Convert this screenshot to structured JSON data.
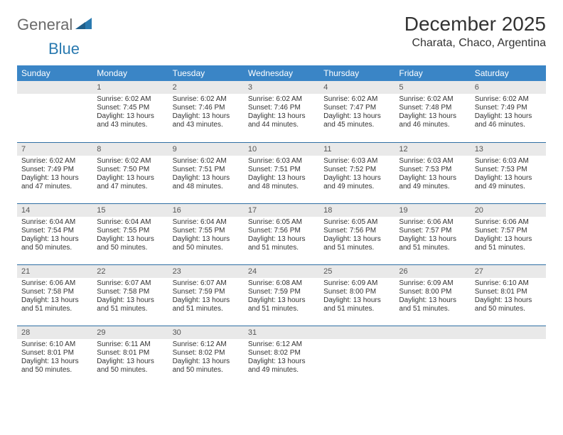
{
  "brand": {
    "general": "General",
    "blue": "Blue"
  },
  "title": "December 2025",
  "location": "Charata, Chaco, Argentina",
  "colors": {
    "header_bg": "#3a85c6",
    "header_fg": "#ffffff",
    "dayhead_bg": "#e9e9e9",
    "row_border": "#2f6fa3",
    "logo_gray": "#6a6a6a",
    "logo_blue": "#2a7ab0",
    "text": "#333333",
    "background": "#ffffff"
  },
  "weekdays": [
    "Sunday",
    "Monday",
    "Tuesday",
    "Wednesday",
    "Thursday",
    "Friday",
    "Saturday"
  ],
  "weeks": [
    [
      null,
      {
        "n": "1",
        "sr": "6:02 AM",
        "ss": "7:45 PM",
        "dl": "13 hours and 43 minutes."
      },
      {
        "n": "2",
        "sr": "6:02 AM",
        "ss": "7:46 PM",
        "dl": "13 hours and 43 minutes."
      },
      {
        "n": "3",
        "sr": "6:02 AM",
        "ss": "7:46 PM",
        "dl": "13 hours and 44 minutes."
      },
      {
        "n": "4",
        "sr": "6:02 AM",
        "ss": "7:47 PM",
        "dl": "13 hours and 45 minutes."
      },
      {
        "n": "5",
        "sr": "6:02 AM",
        "ss": "7:48 PM",
        "dl": "13 hours and 46 minutes."
      },
      {
        "n": "6",
        "sr": "6:02 AM",
        "ss": "7:49 PM",
        "dl": "13 hours and 46 minutes."
      }
    ],
    [
      {
        "n": "7",
        "sr": "6:02 AM",
        "ss": "7:49 PM",
        "dl": "13 hours and 47 minutes."
      },
      {
        "n": "8",
        "sr": "6:02 AM",
        "ss": "7:50 PM",
        "dl": "13 hours and 47 minutes."
      },
      {
        "n": "9",
        "sr": "6:02 AM",
        "ss": "7:51 PM",
        "dl": "13 hours and 48 minutes."
      },
      {
        "n": "10",
        "sr": "6:03 AM",
        "ss": "7:51 PM",
        "dl": "13 hours and 48 minutes."
      },
      {
        "n": "11",
        "sr": "6:03 AM",
        "ss": "7:52 PM",
        "dl": "13 hours and 49 minutes."
      },
      {
        "n": "12",
        "sr": "6:03 AM",
        "ss": "7:53 PM",
        "dl": "13 hours and 49 minutes."
      },
      {
        "n": "13",
        "sr": "6:03 AM",
        "ss": "7:53 PM",
        "dl": "13 hours and 49 minutes."
      }
    ],
    [
      {
        "n": "14",
        "sr": "6:04 AM",
        "ss": "7:54 PM",
        "dl": "13 hours and 50 minutes."
      },
      {
        "n": "15",
        "sr": "6:04 AM",
        "ss": "7:55 PM",
        "dl": "13 hours and 50 minutes."
      },
      {
        "n": "16",
        "sr": "6:04 AM",
        "ss": "7:55 PM",
        "dl": "13 hours and 50 minutes."
      },
      {
        "n": "17",
        "sr": "6:05 AM",
        "ss": "7:56 PM",
        "dl": "13 hours and 51 minutes."
      },
      {
        "n": "18",
        "sr": "6:05 AM",
        "ss": "7:56 PM",
        "dl": "13 hours and 51 minutes."
      },
      {
        "n": "19",
        "sr": "6:06 AM",
        "ss": "7:57 PM",
        "dl": "13 hours and 51 minutes."
      },
      {
        "n": "20",
        "sr": "6:06 AM",
        "ss": "7:57 PM",
        "dl": "13 hours and 51 minutes."
      }
    ],
    [
      {
        "n": "21",
        "sr": "6:06 AM",
        "ss": "7:58 PM",
        "dl": "13 hours and 51 minutes."
      },
      {
        "n": "22",
        "sr": "6:07 AM",
        "ss": "7:58 PM",
        "dl": "13 hours and 51 minutes."
      },
      {
        "n": "23",
        "sr": "6:07 AM",
        "ss": "7:59 PM",
        "dl": "13 hours and 51 minutes."
      },
      {
        "n": "24",
        "sr": "6:08 AM",
        "ss": "7:59 PM",
        "dl": "13 hours and 51 minutes."
      },
      {
        "n": "25",
        "sr": "6:09 AM",
        "ss": "8:00 PM",
        "dl": "13 hours and 51 minutes."
      },
      {
        "n": "26",
        "sr": "6:09 AM",
        "ss": "8:00 PM",
        "dl": "13 hours and 51 minutes."
      },
      {
        "n": "27",
        "sr": "6:10 AM",
        "ss": "8:01 PM",
        "dl": "13 hours and 50 minutes."
      }
    ],
    [
      {
        "n": "28",
        "sr": "6:10 AM",
        "ss": "8:01 PM",
        "dl": "13 hours and 50 minutes."
      },
      {
        "n": "29",
        "sr": "6:11 AM",
        "ss": "8:01 PM",
        "dl": "13 hours and 50 minutes."
      },
      {
        "n": "30",
        "sr": "6:12 AM",
        "ss": "8:02 PM",
        "dl": "13 hours and 50 minutes."
      },
      {
        "n": "31",
        "sr": "6:12 AM",
        "ss": "8:02 PM",
        "dl": "13 hours and 49 minutes."
      },
      null,
      null,
      null
    ]
  ],
  "labels": {
    "sunrise_prefix": "Sunrise: ",
    "sunset_prefix": "Sunset: ",
    "daylight_prefix": "Daylight: "
  }
}
